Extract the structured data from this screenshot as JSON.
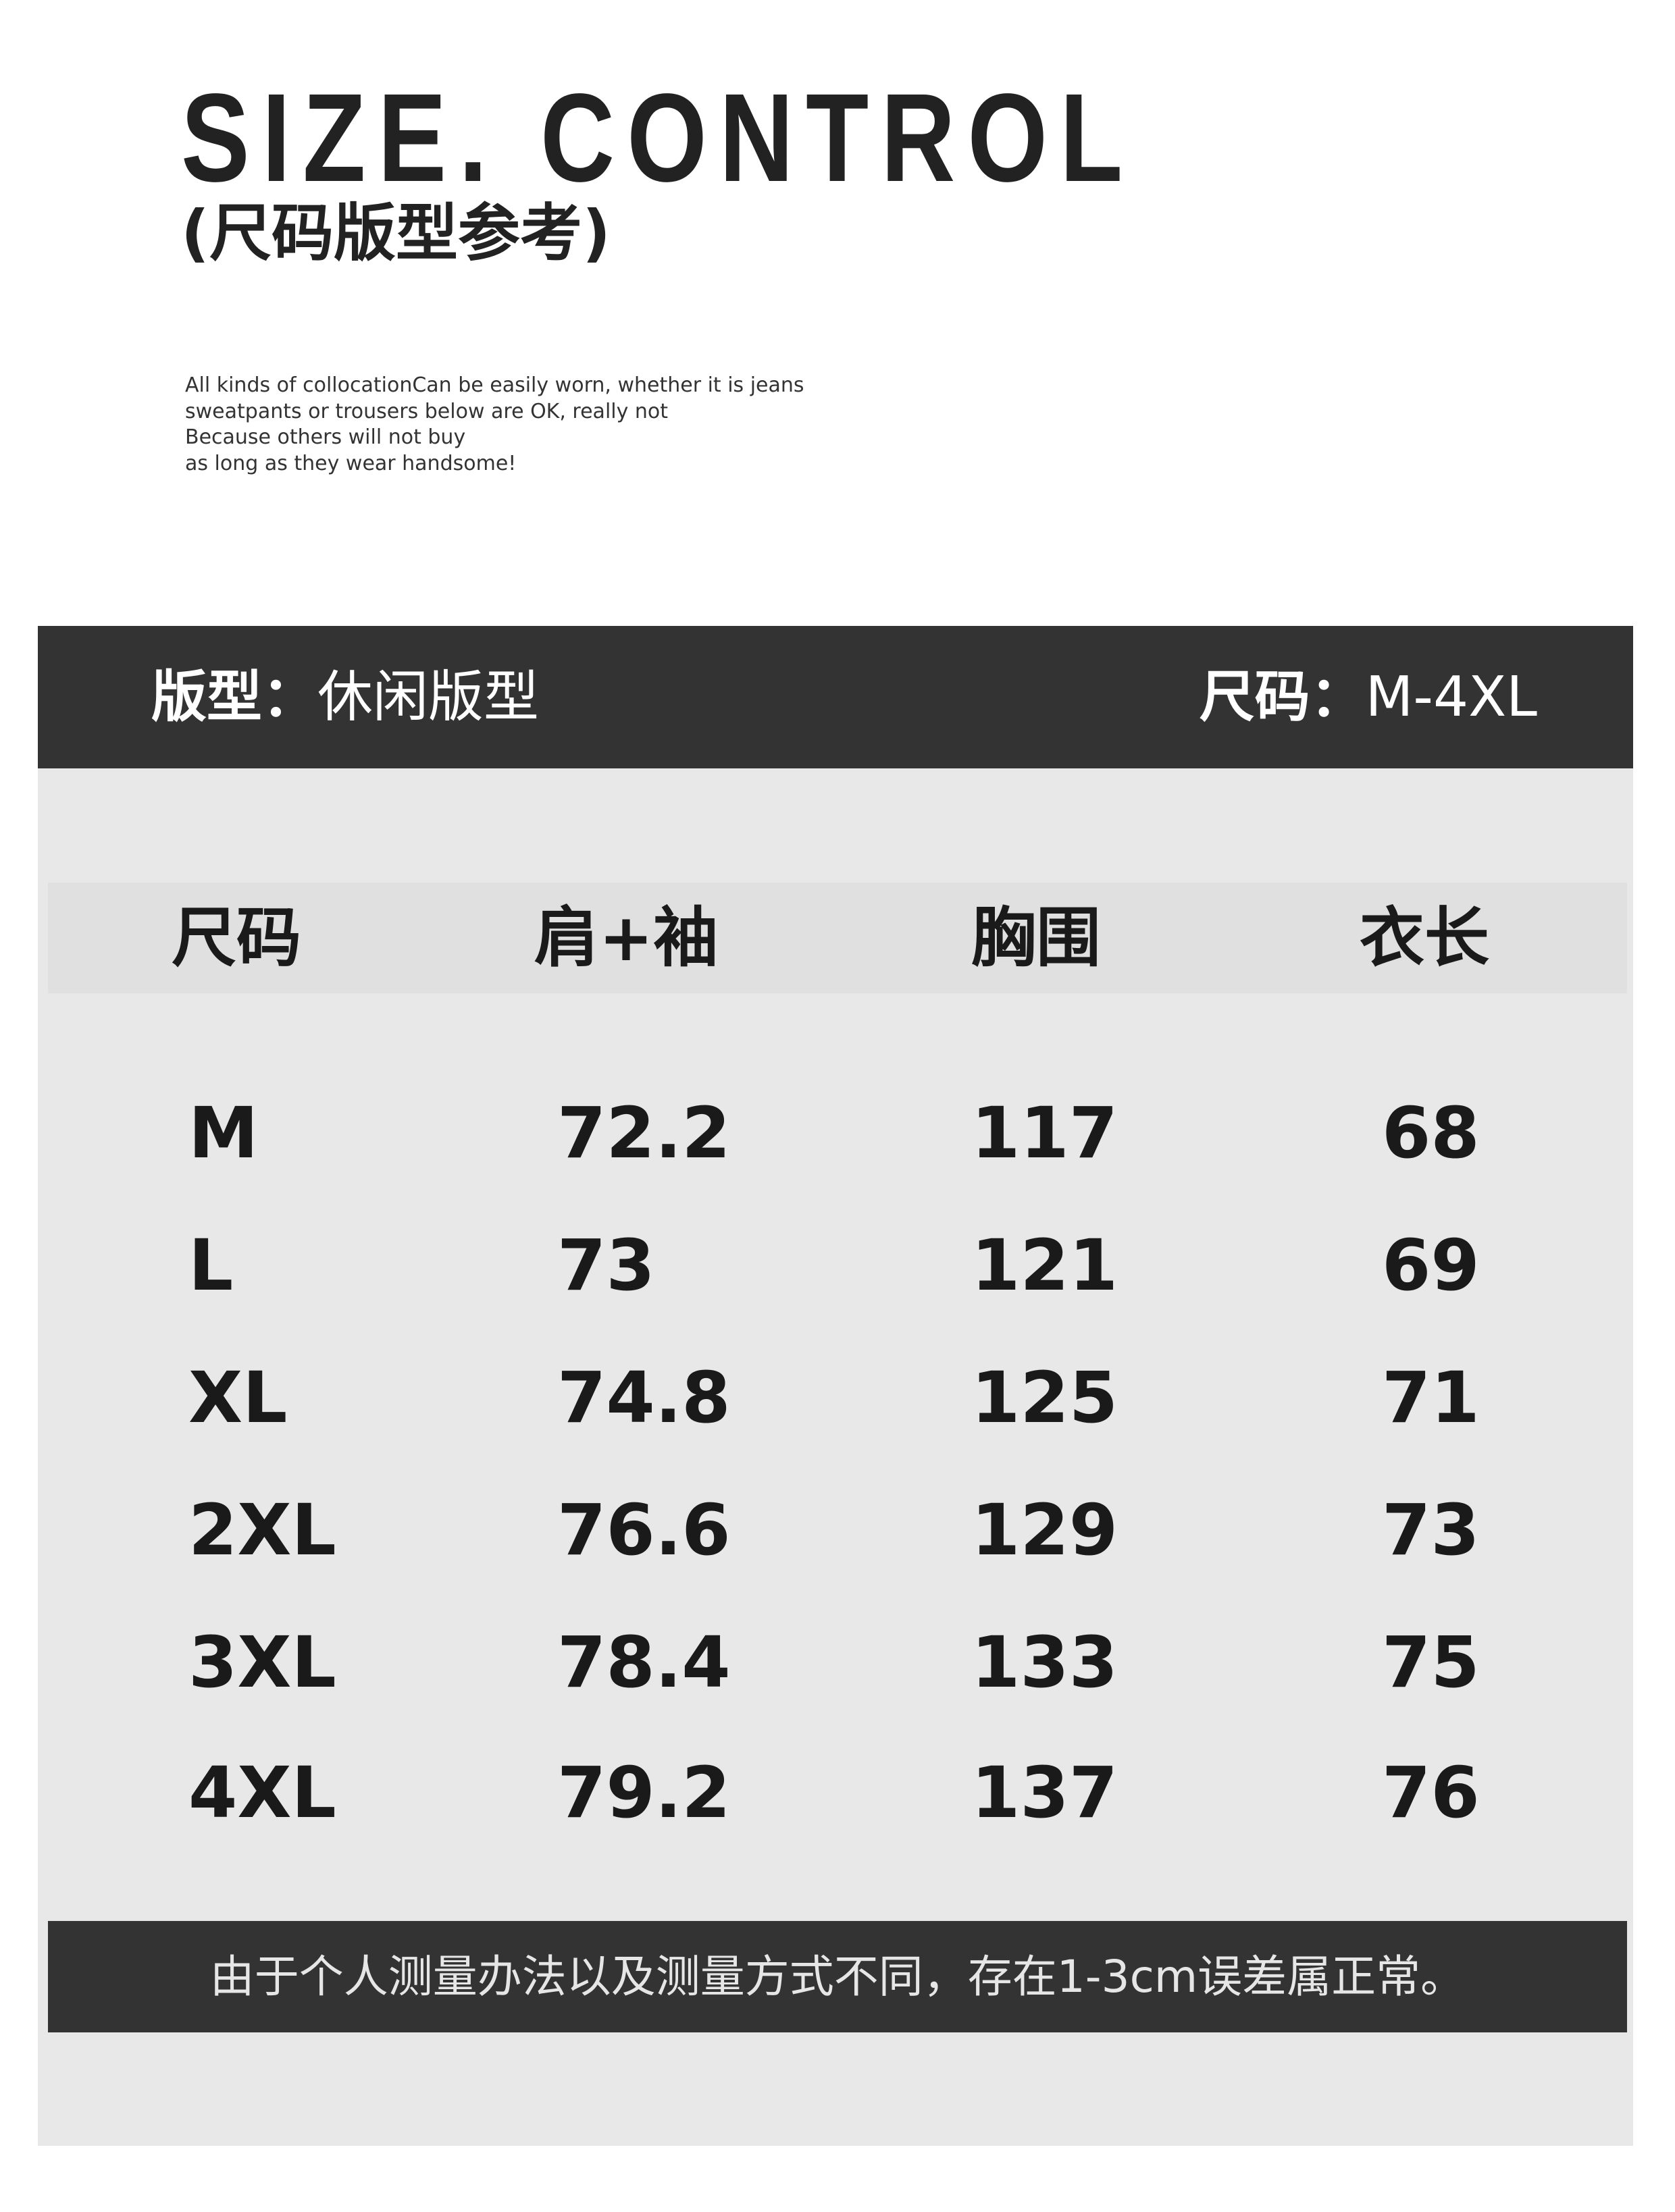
{
  "header": {
    "title": "SIZE. CONTROL",
    "subtitle": "(尺码版型参考)",
    "description": [
      "All kinds of collocationCan be easily worn, whether it is jeans",
      "sweatpants or trousers below are OK, really not",
      "Because others will not buy",
      "as long as they wear handsome!"
    ]
  },
  "info_bar": {
    "fit_label": "版型：",
    "fit_value": "休闲版型",
    "size_label": "尺码：",
    "size_value": "M-4XL"
  },
  "table": {
    "columns": [
      "尺码",
      "肩+袖",
      "胸围",
      "衣长"
    ],
    "rows": [
      [
        "M",
        "72.2",
        "117",
        "68"
      ],
      [
        "L",
        "73",
        "121",
        "69"
      ],
      [
        "XL",
        "74.8",
        "125",
        "71"
      ],
      [
        "2XL",
        "76.6",
        "129",
        "73"
      ],
      [
        "3XL",
        "78.4",
        "133",
        "75"
      ],
      [
        "4XL",
        "79.2",
        "137",
        "76"
      ]
    ]
  },
  "footer": {
    "note": "由于个人测量办法以及测量方式不同，存在1-3cm误差属正常。"
  },
  "colors": {
    "dark_bar": "#333333",
    "panel": "#e8e8e8",
    "header_row": "#e0e0e0"
  }
}
